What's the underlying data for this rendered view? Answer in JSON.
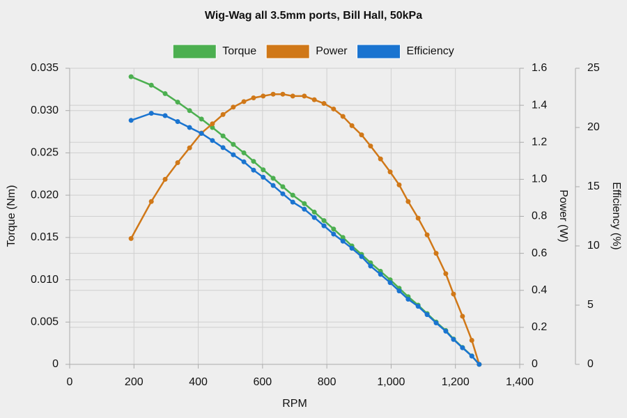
{
  "chart_data": {
    "type": "line",
    "title": "Wig-Wag all 3.5mm ports, Bill Hall, 50kPa",
    "x_label": "RPM",
    "y_label": "Torque (Nm)",
    "y2_label": "Power (W)",
    "y3_label": "Efficiency (%)",
    "x": [
      191,
      254,
      297,
      336,
      373,
      410,
      444,
      477,
      509,
      542,
      572,
      602,
      633,
      663,
      694,
      730,
      761,
      791,
      821,
      850,
      878,
      908,
      936,
      967,
      997,
      1025,
      1053,
      1084,
      1112,
      1140,
      1170,
      1194,
      1222,
      1251,
      1274
    ],
    "series": [
      {
        "name": "Torque",
        "color": "#4caf50",
        "axis": "y",
        "values": [
          0.034,
          0.033,
          0.032,
          0.031,
          0.03,
          0.029,
          0.028,
          0.027,
          0.026,
          0.025,
          0.024,
          0.023,
          0.022,
          0.021,
          0.02,
          0.019,
          0.018,
          0.017,
          0.016,
          0.015,
          0.014,
          0.013,
          0.012,
          0.011,
          0.01,
          0.009,
          0.008,
          0.007,
          0.006,
          0.005,
          0.004,
          0.003,
          0.002,
          0.001,
          0
        ]
      },
      {
        "name": "Power",
        "color": "#d07818",
        "axis": "y2",
        "values": [
          0.68,
          0.88,
          1.0,
          1.09,
          1.17,
          1.25,
          1.3,
          1.35,
          1.39,
          1.42,
          1.44,
          1.45,
          1.46,
          1.46,
          1.45,
          1.45,
          1.43,
          1.41,
          1.38,
          1.34,
          1.29,
          1.24,
          1.18,
          1.11,
          1.04,
          0.97,
          0.88,
          0.79,
          0.7,
          0.6,
          0.49,
          0.38,
          0.26,
          0.13,
          0
        ]
      },
      {
        "name": "Efficiency",
        "color": "#1a74d0",
        "axis": "y3",
        "values": [
          20.6,
          21.2,
          21.0,
          20.5,
          20.0,
          19.5,
          18.9,
          18.3,
          17.7,
          17.1,
          16.4,
          15.8,
          15.1,
          14.4,
          13.7,
          13.1,
          12.4,
          11.7,
          11.0,
          10.4,
          9.8,
          9.1,
          8.3,
          7.6,
          6.9,
          6.2,
          5.5,
          4.9,
          4.2,
          3.5,
          2.8,
          2.1,
          1.4,
          0.7,
          0
        ]
      }
    ],
    "xlim": [
      0,
      1400
    ],
    "xticks": [
      0,
      200,
      400,
      600,
      800,
      {
        "value": 1000,
        "label": "1,000"
      },
      {
        "value": 1200,
        "label": "1,200"
      },
      {
        "value": 1400,
        "label": "1,400"
      }
    ],
    "ylim": [
      0,
      0.035
    ],
    "yticks": [
      0,
      0.005,
      {
        "value": 0.01,
        "label": "0.010"
      },
      0.015,
      {
        "value": 0.02,
        "label": "0.020"
      },
      0.025,
      {
        "value": 0.03,
        "label": "0.030"
      },
      0.035
    ],
    "y2lim": [
      0,
      1.6
    ],
    "y2ticks": [
      0,
      0.2,
      0.4,
      0.6,
      0.8,
      {
        "value": 1,
        "label": "1.0"
      },
      1.2,
      1.4,
      1.6
    ],
    "y3lim": [
      0,
      25
    ],
    "y3ticks": [
      0,
      5,
      10,
      15,
      20,
      25
    ],
    "grid": true,
    "legend": "top"
  }
}
